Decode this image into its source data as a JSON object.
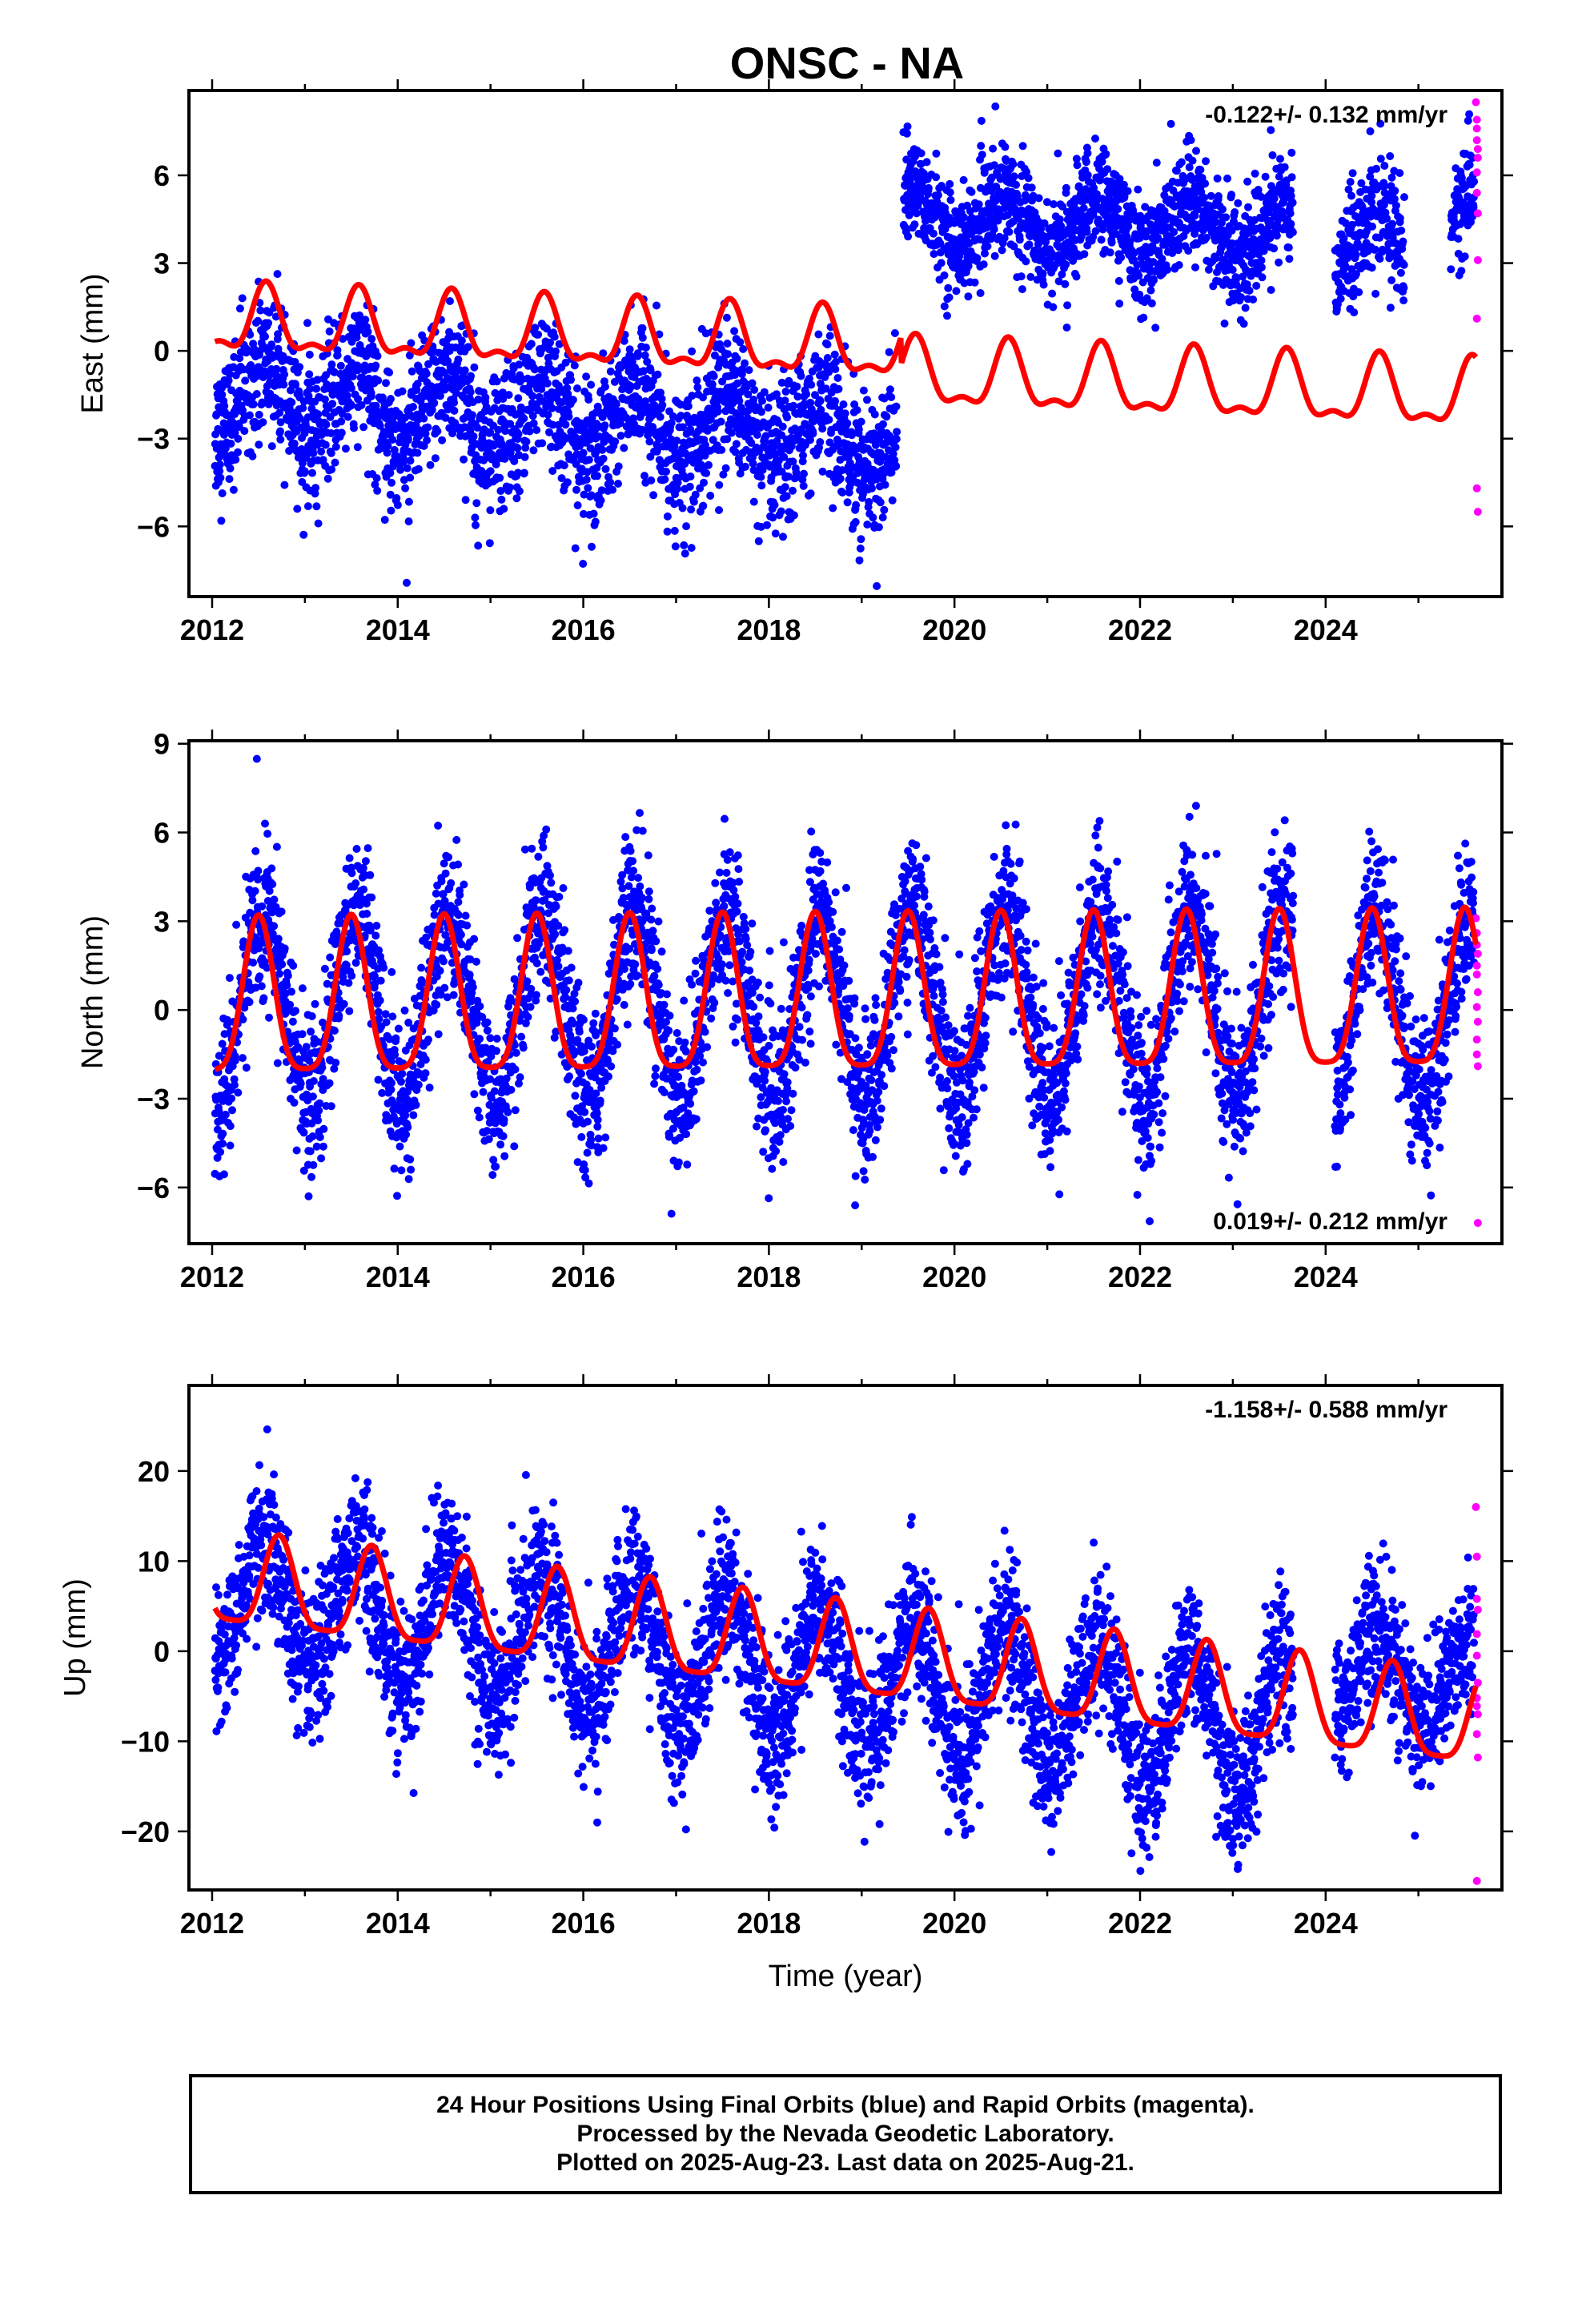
{
  "footer": {
    "line1": "24 Hour Positions Using Final Orbits (blue) and Rapid Orbits (magenta).",
    "line2": "Processed by the Nevada Geodetic Laboratory.",
    "line3": "Plotted on 2025-Aug-23. Last data on 2025-Aug-21."
  },
  "colors": {
    "final": "#0000ff",
    "rapid": "#ff00ff",
    "model": "#ff0000"
  },
  "chart_data": [
    {
      "type": "scatter",
      "title": "ONSC - NA",
      "xlabel": "",
      "ylabel": "East (mm)",
      "xlim": [
        2011.75,
        2025.9
      ],
      "ylim": [
        -8.4,
        8.9
      ],
      "xticks": [
        2012,
        2014,
        2016,
        2018,
        2020,
        2022,
        2024
      ],
      "yticks": [
        -6,
        -3,
        0,
        3,
        6
      ],
      "rate_text": "-0.122+/- 0.132 mm/yr",
      "rate_position": "top-right",
      "series": [
        {
          "name": "Final Orbits",
          "color": "#0000ff",
          "description_of_distribution": "daily points",
          "segments": [
            {
              "start": 2012.03,
              "end": 2019.38,
              "mean": -1.5,
              "trend": -0.22,
              "amplitude": 1.2,
              "scatter": 1.2
            },
            {
              "start": 2019.45,
              "end": 2023.65,
              "mean": 4.6,
              "trend": -0.15,
              "amplitude": 0.9,
              "scatter": 0.9
            },
            {
              "start": 2024.1,
              "end": 2024.85,
              "mean": 3.8,
              "trend": 0,
              "amplitude": 0.8,
              "scatter": 1.0
            },
            {
              "start": 2025.35,
              "end": 2025.6,
              "mean": 4.5,
              "trend": 1.5,
              "amplitude": 0.5,
              "scatter": 1.0
            }
          ]
        },
        {
          "name": "Rapid Orbits",
          "color": "#ff00ff",
          "points": [
            [
              2025.62,
              8.5
            ],
            [
              2025.63,
              7.9
            ],
            [
              2025.63,
              7.6
            ],
            [
              2025.63,
              7.2
            ],
            [
              2025.64,
              6.9
            ],
            [
              2025.64,
              6.6
            ],
            [
              2025.63,
              6.1
            ],
            [
              2025.63,
              5.4
            ],
            [
              2025.64,
              4.7
            ],
            [
              2025.64,
              3.1
            ],
            [
              2025.63,
              1.1
            ],
            [
              2025.63,
              -4.7
            ],
            [
              2025.64,
              -5.5
            ]
          ]
        },
        {
          "name": "Model",
          "color": "#ff0000",
          "kind": "line",
          "components": {
            "offset_before": 0.95,
            "offset_after": 0.0,
            "break_year": 2019.42,
            "trend": -0.12,
            "annual_amp": 1.05,
            "annual_peak": 2012.58,
            "semi_amp": 0.45
          }
        }
      ]
    },
    {
      "type": "scatter",
      "title": "",
      "xlabel": "",
      "ylabel": "North (mm)",
      "xlim": [
        2011.75,
        2025.9
      ],
      "ylim": [
        -7.9,
        9.1
      ],
      "xticks": [
        2012,
        2014,
        2016,
        2018,
        2020,
        2022,
        2024
      ],
      "yticks": [
        -6,
        -3,
        0,
        3,
        6,
        9
      ],
      "rate_text": "0.019+/- 0.212 mm/yr",
      "rate_position": "bottom-right",
      "series": [
        {
          "name": "Final Orbits",
          "color": "#0000ff",
          "segments": [
            {
              "start": 2012.03,
              "end": 2023.65,
              "mean": 0.0,
              "trend": 0.02,
              "amplitude": 3.2,
              "scatter": 1.3
            },
            {
              "start": 2024.1,
              "end": 2025.6,
              "mean": 0.0,
              "trend": 0.02,
              "amplitude": 3.2,
              "scatter": 1.3
            }
          ]
        },
        {
          "name": "Rapid Orbits",
          "color": "#ff00ff",
          "points": [
            [
              2025.62,
              3.1
            ],
            [
              2025.63,
              2.6
            ],
            [
              2025.63,
              2.2
            ],
            [
              2025.64,
              1.9
            ],
            [
              2025.63,
              1.5
            ],
            [
              2025.63,
              1.2
            ],
            [
              2025.64,
              0.6
            ],
            [
              2025.63,
              0.1
            ],
            [
              2025.64,
              -0.4
            ],
            [
              2025.63,
              -1.0
            ],
            [
              2025.63,
              -1.5
            ],
            [
              2025.64,
              -1.9
            ],
            [
              2025.64,
              -7.2
            ]
          ]
        },
        {
          "name": "Model",
          "color": "#ff0000",
          "kind": "line",
          "components": {
            "offset_before": 0.0,
            "offset_after": 0.0,
            "break_year": 2019.42,
            "trend": 0.02,
            "annual_amp": 2.6,
            "annual_peak": 2012.5,
            "semi_amp": 0.6
          }
        }
      ]
    },
    {
      "type": "scatter",
      "title": "",
      "xlabel": "Time (year)",
      "ylabel": "Up (mm)",
      "xlim": [
        2011.75,
        2025.9
      ],
      "ylim": [
        -26.5,
        29.5
      ],
      "xticks": [
        2012,
        2014,
        2016,
        2018,
        2020,
        2022,
        2024
      ],
      "yticks": [
        -20,
        -10,
        0,
        10,
        20
      ],
      "rate_text": "-1.158+/- 0.588 mm/yr",
      "rate_position": "top-right",
      "series": [
        {
          "name": "Final Orbits",
          "color": "#0000ff",
          "segments": [
            {
              "start": 2012.03,
              "end": 2023.65,
              "mean": 6.0,
              "trend": -1.3,
              "amplitude": 7.5,
              "scatter": 4.0
            },
            {
              "start": 2024.1,
              "end": 2025.6,
              "mean": -2.5,
              "trend": -1.0,
              "amplitude": 5.0,
              "scatter": 3.8
            }
          ]
        },
        {
          "name": "Rapid Orbits",
          "color": "#ff00ff",
          "points": [
            [
              2025.62,
              16.0
            ],
            [
              2025.63,
              10.5
            ],
            [
              2025.63,
              5.8
            ],
            [
              2025.64,
              4.6
            ],
            [
              2025.63,
              1.9
            ],
            [
              2025.63,
              -0.5
            ],
            [
              2025.64,
              -3.5
            ],
            [
              2025.63,
              -5.2
            ],
            [
              2025.63,
              -6.1
            ],
            [
              2025.64,
              -7.0
            ],
            [
              2025.63,
              -9.2
            ],
            [
              2025.64,
              -11.8
            ],
            [
              2025.63,
              -25.5
            ]
          ]
        },
        {
          "name": "Model",
          "color": "#ff0000",
          "kind": "line",
          "components": {
            "offset_before": 7.5,
            "offset_after": 7.5,
            "break_year": 2019.42,
            "trend": -1.16,
            "annual_amp": 5.0,
            "annual_peak": 2012.72,
            "semi_amp": 1.2
          }
        }
      ]
    }
  ]
}
